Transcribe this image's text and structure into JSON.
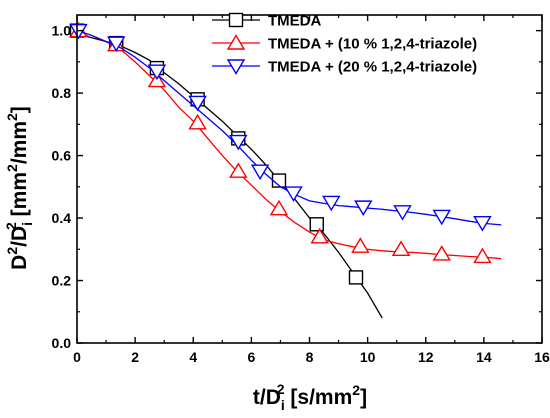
{
  "chart_data": {
    "type": "line",
    "xlabel": {
      "main": "t/D",
      "sub": "i",
      "sup": "2",
      "unit": " [s/mm",
      "unit_sup": "2",
      "close": "]"
    },
    "ylabel": {
      "main": "D",
      "sup1": "2",
      "slash": "/D",
      "sub": "i",
      "sup2": "2",
      "unit": " [mm",
      "unit_sup1": "2",
      "unit_mid": "/mm",
      "unit_sup2": "2",
      "close": "]"
    },
    "xlim": [
      0,
      16
    ],
    "ylim": [
      0,
      1.05
    ],
    "xticks": [
      0,
      2,
      4,
      6,
      8,
      10,
      12,
      14,
      16
    ],
    "yticks": [
      0.0,
      0.2,
      0.4,
      0.6,
      0.8,
      1.0
    ],
    "xtick_labels": [
      "0",
      "2",
      "4",
      "6",
      "8",
      "10",
      "12",
      "14",
      "16"
    ],
    "ytick_labels": [
      "0.0",
      "0.2",
      "0.4",
      "0.6",
      "0.8",
      "1.0"
    ],
    "grid": false,
    "legend_position": "top-right",
    "series": [
      {
        "name": "TMEDA",
        "color": "#000000",
        "marker": "square",
        "line": [
          [
            0.0,
            1.0
          ],
          [
            0.4,
            0.98
          ],
          [
            0.8,
            0.97
          ],
          [
            1.4,
            0.955
          ],
          [
            2.0,
            0.93
          ],
          [
            2.5,
            0.905
          ],
          [
            3.0,
            0.865
          ],
          [
            3.5,
            0.83
          ],
          [
            4.0,
            0.79
          ],
          [
            4.5,
            0.75
          ],
          [
            5.0,
            0.71
          ],
          [
            5.5,
            0.665
          ],
          [
            6.0,
            0.62
          ],
          [
            6.5,
            0.57
          ],
          [
            7.0,
            0.515
          ],
          [
            7.5,
            0.46
          ],
          [
            8.0,
            0.4
          ],
          [
            8.5,
            0.35
          ],
          [
            9.0,
            0.29
          ],
          [
            9.5,
            0.225
          ],
          [
            10.0,
            0.16
          ],
          [
            10.5,
            0.08
          ]
        ],
        "markers": [
          [
            0.0,
            1.0
          ],
          [
            1.35,
            0.96
          ],
          [
            2.75,
            0.88
          ],
          [
            4.15,
            0.78
          ],
          [
            5.55,
            0.655
          ],
          [
            6.95,
            0.52
          ],
          [
            8.25,
            0.38
          ],
          [
            9.6,
            0.21
          ]
        ]
      },
      {
        "name": "TMEDA + (10 % 1,2,4-triazole)",
        "color": "#ff0000",
        "marker": "triangle-up",
        "line": [
          [
            0.0,
            1.0
          ],
          [
            0.5,
            0.985
          ],
          [
            1.0,
            0.965
          ],
          [
            1.5,
            0.94
          ],
          [
            2.0,
            0.9
          ],
          [
            2.5,
            0.855
          ],
          [
            3.0,
            0.81
          ],
          [
            3.5,
            0.755
          ],
          [
            4.0,
            0.71
          ],
          [
            4.5,
            0.655
          ],
          [
            5.0,
            0.6
          ],
          [
            5.5,
            0.55
          ],
          [
            6.0,
            0.505
          ],
          [
            6.5,
            0.46
          ],
          [
            7.0,
            0.42
          ],
          [
            7.5,
            0.385
          ],
          [
            8.0,
            0.355
          ],
          [
            8.5,
            0.33
          ],
          [
            9.0,
            0.318
          ],
          [
            9.5,
            0.308
          ],
          [
            10.0,
            0.3
          ],
          [
            10.5,
            0.295
          ],
          [
            11.0,
            0.292
          ],
          [
            11.5,
            0.29
          ],
          [
            12.0,
            0.287
          ],
          [
            12.5,
            0.283
          ],
          [
            13.0,
            0.28
          ],
          [
            13.5,
            0.277
          ],
          [
            14.0,
            0.275
          ],
          [
            14.6,
            0.27
          ]
        ],
        "markers": [
          [
            0.05,
            1.0
          ],
          [
            1.35,
            0.955
          ],
          [
            2.75,
            0.84
          ],
          [
            4.15,
            0.705
          ],
          [
            5.55,
            0.55
          ],
          [
            6.95,
            0.43
          ],
          [
            8.35,
            0.34
          ],
          [
            9.75,
            0.31
          ],
          [
            11.15,
            0.3
          ],
          [
            12.55,
            0.285
          ],
          [
            13.95,
            0.277
          ]
        ]
      },
      {
        "name": "TMEDA + (20 % 1,2,4-triazole)",
        "color": "#0000ff",
        "marker": "triangle-down",
        "line": [
          [
            0.0,
            1.0
          ],
          [
            0.5,
            0.985
          ],
          [
            1.0,
            0.965
          ],
          [
            1.5,
            0.945
          ],
          [
            2.0,
            0.915
          ],
          [
            2.5,
            0.88
          ],
          [
            3.0,
            0.84
          ],
          [
            3.5,
            0.8
          ],
          [
            4.0,
            0.76
          ],
          [
            4.5,
            0.72
          ],
          [
            5.0,
            0.68
          ],
          [
            5.5,
            0.635
          ],
          [
            6.0,
            0.585
          ],
          [
            6.5,
            0.54
          ],
          [
            7.0,
            0.5
          ],
          [
            7.5,
            0.475
          ],
          [
            8.0,
            0.455
          ],
          [
            8.5,
            0.447
          ],
          [
            9.0,
            0.44
          ],
          [
            9.5,
            0.436
          ],
          [
            10.0,
            0.432
          ],
          [
            10.5,
            0.428
          ],
          [
            11.0,
            0.423
          ],
          [
            11.5,
            0.418
          ],
          [
            12.0,
            0.412
          ],
          [
            12.5,
            0.405
          ],
          [
            13.0,
            0.398
          ],
          [
            13.5,
            0.39
          ],
          [
            14.0,
            0.383
          ],
          [
            14.6,
            0.378
          ]
        ],
        "markers": [
          [
            0.05,
            1.0
          ],
          [
            1.35,
            0.96
          ],
          [
            2.75,
            0.87
          ],
          [
            4.15,
            0.77
          ],
          [
            5.55,
            0.645
          ],
          [
            6.3,
            0.55
          ],
          [
            7.45,
            0.48
          ],
          [
            8.75,
            0.45
          ],
          [
            9.85,
            0.435
          ],
          [
            11.2,
            0.42
          ],
          [
            12.55,
            0.405
          ],
          [
            13.95,
            0.385
          ]
        ]
      }
    ]
  }
}
